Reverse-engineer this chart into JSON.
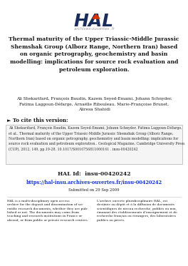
{
  "bg_color": "#ffffff",
  "hal_logo_color": "#1a2d5a",
  "hal_sub_color": "#888888",
  "hal_sub_text": "archives-ouvertes .fr",
  "title": "Thermal maturity of the Upper Triassic-Middle Jurassic\nShemshak Group (Alborz Range, Northern Iran) based\non organic petrography, geochemistry and basin\nmodelling: implications for source rock evaluation and\npetroleum exploration.",
  "authors": "Ali Shekarifard, François Baudin, Kazem Seyed-Emami, Johann Schnyder,\nFatima Laggoun-Défarge, Arnaëlle Ribouleau, Marie-Françoise Brunet,\nAliresa Shahidi",
  "cite_header": "► To cite this version:",
  "cite_body": "Ali Shekarifard, François Baudin, Kazem Seyed-Emami, Johann Schnyder, Fatima Laggoun-Défarge,\net al.. Thermal maturity of the Upper Triassic-Middle Jurassic Shemshak Group (Alborz Range,\nNorthern Iran) based on organic petrography, geochemistry and basin modelling: implications for\nsource rock evaluation and petroleum exploration.. Geological Magazine, Cambridge University Press\n(CUP), 2012, 149, pp.19-28. 10.1017/S0016756811000161 . insu-00420242",
  "hal_id_label": "HAL Id:",
  "hal_id_value": "insu-00420242",
  "hal_url": "https://hal-insu.archives-ouvertes.fr/insu-00420242",
  "submitted": "Submitted on 29 Sep 2009",
  "footer_left": "HAL is a multi-disciplinary open access\narchive for the deposit and dissemination of sci-\nentific research documents, whether they are pub-\nlished or not. The documents may come from\nteaching and research institutions in France or\nabroad, or from public or private research centers.",
  "footer_right": "L'archive ouverte pluridisciplinaire HAL, est\ndestinée au dépôt et à la diffusion de documents\nscientifiques de niveau recherche, publiés ou non,\némanant des établissements d'enseignement et de\nrecherche français ou étrangers, des laboratoires\npublics ou privés.",
  "text_color": "#1a1a1a",
  "link_color": "#1133cc",
  "arrow_color": "#cc2200",
  "cite_arrow_color": "#dd3300",
  "box_edge_color": "#bbbbbb",
  "box_face_color": "#f5f5f5",
  "divider_color": "#cccccc"
}
